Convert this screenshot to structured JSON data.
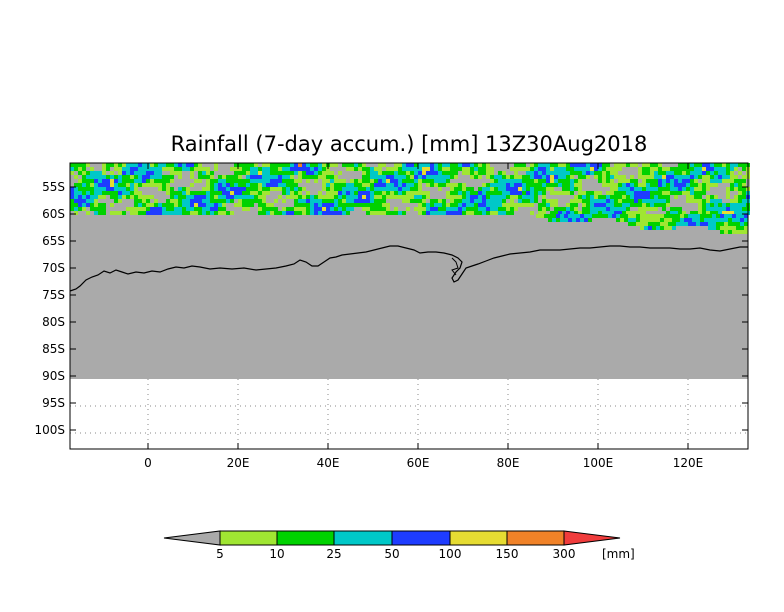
{
  "title": "Rainfall (7-day accum.) [mm] 13Z30Aug2018",
  "lat_labels": [
    "55S",
    "60S",
    "65S",
    "70S",
    "75S",
    "80S",
    "85S",
    "90S",
    "95S",
    "100S"
  ],
  "lon_labels": [
    "0",
    "20E",
    "40E",
    "60E",
    "80E",
    "100E",
    "120E"
  ],
  "colorbar": {
    "unit": "[mm]",
    "thresholds": [
      "5",
      "10",
      "25",
      "50",
      "100",
      "150",
      "300"
    ],
    "colors": [
      "#aaaaaa",
      "#a0e632",
      "#00d200",
      "#00c8c8",
      "#1e3cff",
      "#e6dc32",
      "#f08228",
      "#f03c3c"
    ]
  },
  "colors": {
    "no_data_gray": "#aaaaaa",
    "coastline": "#000000",
    "gridline": "#888888"
  },
  "chart_data": {
    "type": "heatmap",
    "title": "Rainfall (7-day accum.) [mm] 13Z30Aug2018",
    "lon_range": [
      -17,
      133
    ],
    "lat_range": [
      -103,
      -52
    ],
    "data_region_lat": [
      -52,
      -60
    ],
    "masked_region_lat": [
      -60,
      -90
    ],
    "levels_mm": [
      5,
      10,
      25,
      50,
      100,
      150,
      300
    ],
    "unit": "mm"
  }
}
